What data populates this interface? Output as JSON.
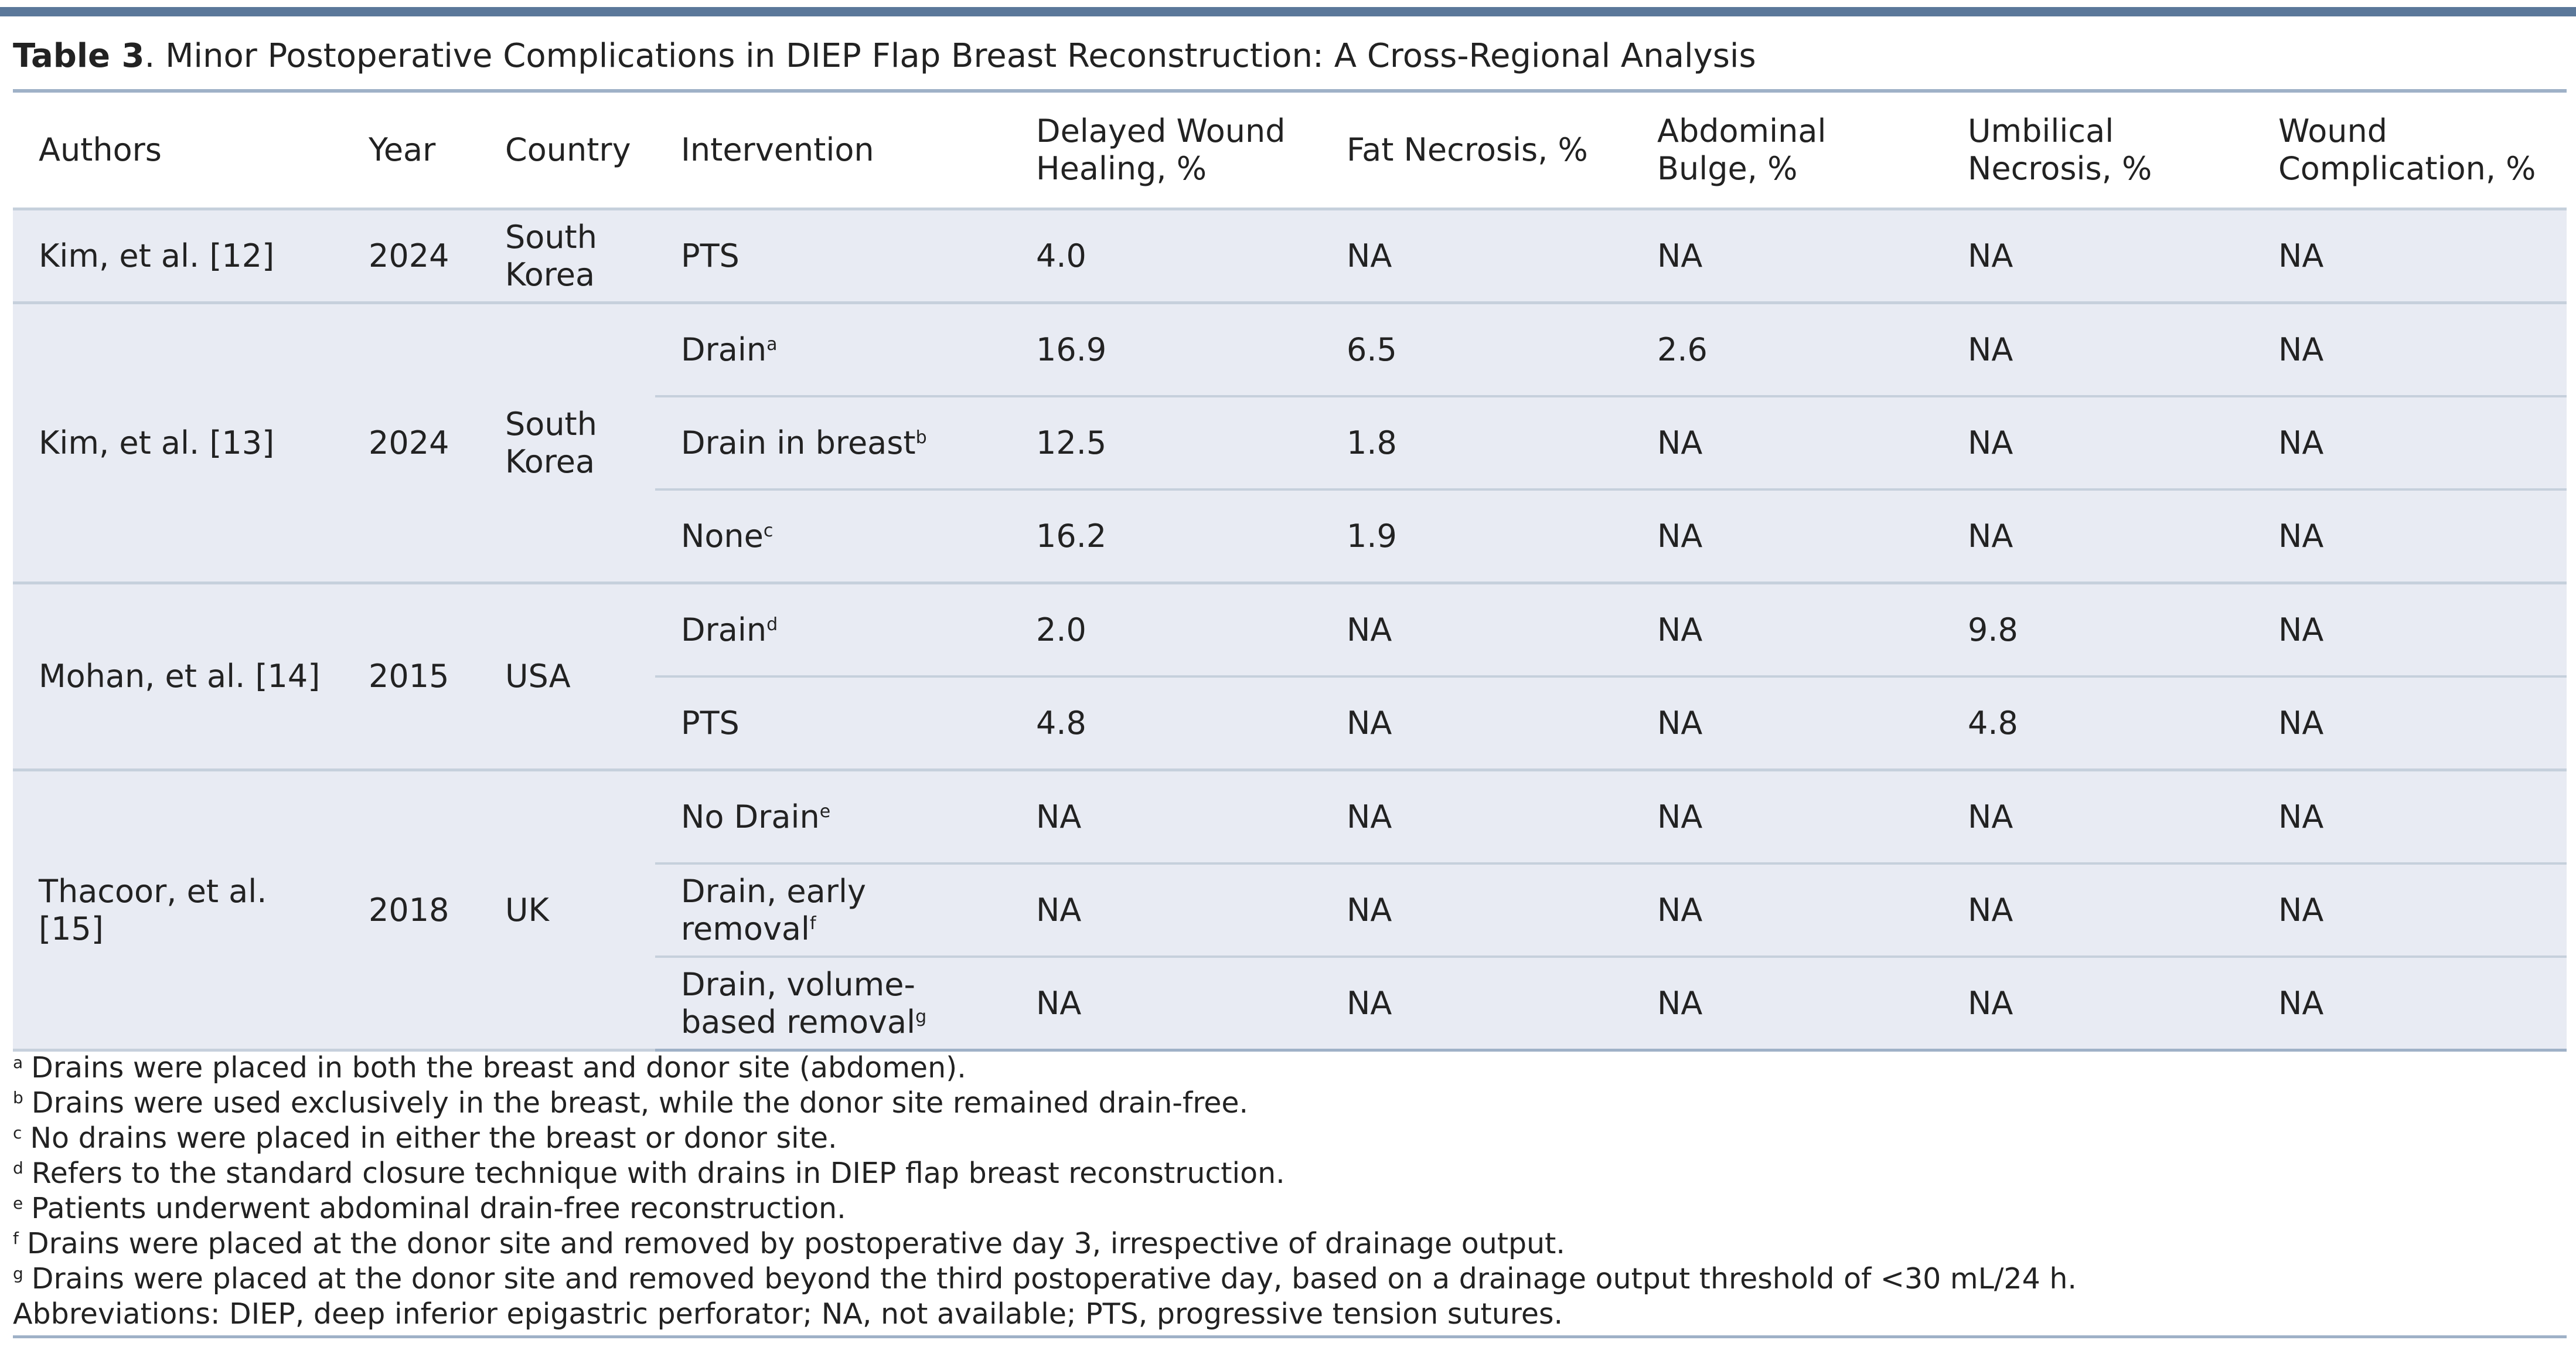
{
  "caption": {
    "label": "Table 3",
    "text": ". Minor Postoperative Complications in DIEP Flap Breast Reconstruction: A Cross-Regional Analysis"
  },
  "columns": [
    [
      "Authors"
    ],
    [
      "Year"
    ],
    [
      "Country"
    ],
    [
      "Intervention"
    ],
    [
      "Delayed Wound",
      "Healing, %"
    ],
    [
      "Fat Necrosis, %"
    ],
    [
      "Abdominal",
      "Bulge, %"
    ],
    [
      "Umbilical",
      "Necrosis, %"
    ],
    [
      "Wound",
      "Complication, %"
    ]
  ],
  "groups": [
    {
      "author": "Kim, et al. [12]",
      "year": "2024",
      "country": [
        "South",
        "Korea"
      ],
      "rows": [
        {
          "intervention": [
            "PTS"
          ],
          "sup": "",
          "values": [
            "4.0",
            "NA",
            "NA",
            "NA",
            "NA"
          ]
        }
      ]
    },
    {
      "author": "Kim, et al. [13]",
      "year": "2024",
      "country": [
        "South",
        "Korea"
      ],
      "rows": [
        {
          "intervention": [
            "Drain"
          ],
          "sup": "a",
          "values": [
            "16.9",
            "6.5",
            "2.6",
            "NA",
            "NA"
          ]
        },
        {
          "intervention": [
            "Drain in breast"
          ],
          "sup": "b",
          "values": [
            "12.5",
            "1.8",
            "NA",
            "NA",
            "NA"
          ]
        },
        {
          "intervention": [
            "None"
          ],
          "sup": "c",
          "values": [
            "16.2",
            "1.9",
            "NA",
            "NA",
            "NA"
          ]
        }
      ]
    },
    {
      "author": "Mohan, et al. [14]",
      "year": "2015",
      "country": [
        "USA"
      ],
      "rows": [
        {
          "intervention": [
            "Drain"
          ],
          "sup": "d",
          "values": [
            "2.0",
            "NA",
            "NA",
            "9.8",
            "NA"
          ]
        },
        {
          "intervention": [
            "PTS"
          ],
          "sup": "",
          "values": [
            "4.8",
            "NA",
            "NA",
            "4.8",
            "NA"
          ]
        }
      ]
    },
    {
      "author": "Thacoor, et al. [15]",
      "year": "2018",
      "country": [
        "UK"
      ],
      "rows": [
        {
          "intervention": [
            "No Drain"
          ],
          "sup": "e",
          "values": [
            "NA",
            "NA",
            "NA",
            "NA",
            "NA"
          ]
        },
        {
          "intervention": [
            "Drain, early",
            "removal"
          ],
          "sup": "f",
          "values": [
            "NA",
            "NA",
            "NA",
            "NA",
            "NA"
          ]
        },
        {
          "intervention": [
            "Drain, volume-",
            "based removal"
          ],
          "sup": "g",
          "values": [
            "NA",
            "NA",
            "NA",
            "NA",
            "NA"
          ]
        }
      ]
    }
  ],
  "footnotes": [
    {
      "mark": "a",
      "text": "Drains were placed in both the breast and donor site (abdomen)."
    },
    {
      "mark": "b",
      "text": "Drains were used exclusively in the breast, while the donor site remained drain-free."
    },
    {
      "mark": "c",
      "text": "No drains were placed in either the breast or donor site."
    },
    {
      "mark": "d",
      "text": "Refers to the standard closure technique with drains in DIEP flap breast reconstruction."
    },
    {
      "mark": "e",
      "text": "Patients underwent abdominal drain-free reconstruction."
    },
    {
      "mark": "f",
      "text": "Drains were placed at the donor site and removed by postoperative day 3, irrespective of drainage output."
    },
    {
      "mark": "g",
      "text": "Drains were placed at the donor site and removed beyond the third postoperative day, based on a drainage output threshold of <30 mL/24 h."
    }
  ],
  "abbreviations": "Abbreviations:  DIEP, deep inferior epigastric perforator;  NA, not available; PTS, progressive tension sutures.",
  "colors": {
    "rule_dark": "#5b789a",
    "rule_light": "#9fb1c7",
    "row_fill": "#e8ebf3",
    "row_border": "#c6d0dc"
  }
}
